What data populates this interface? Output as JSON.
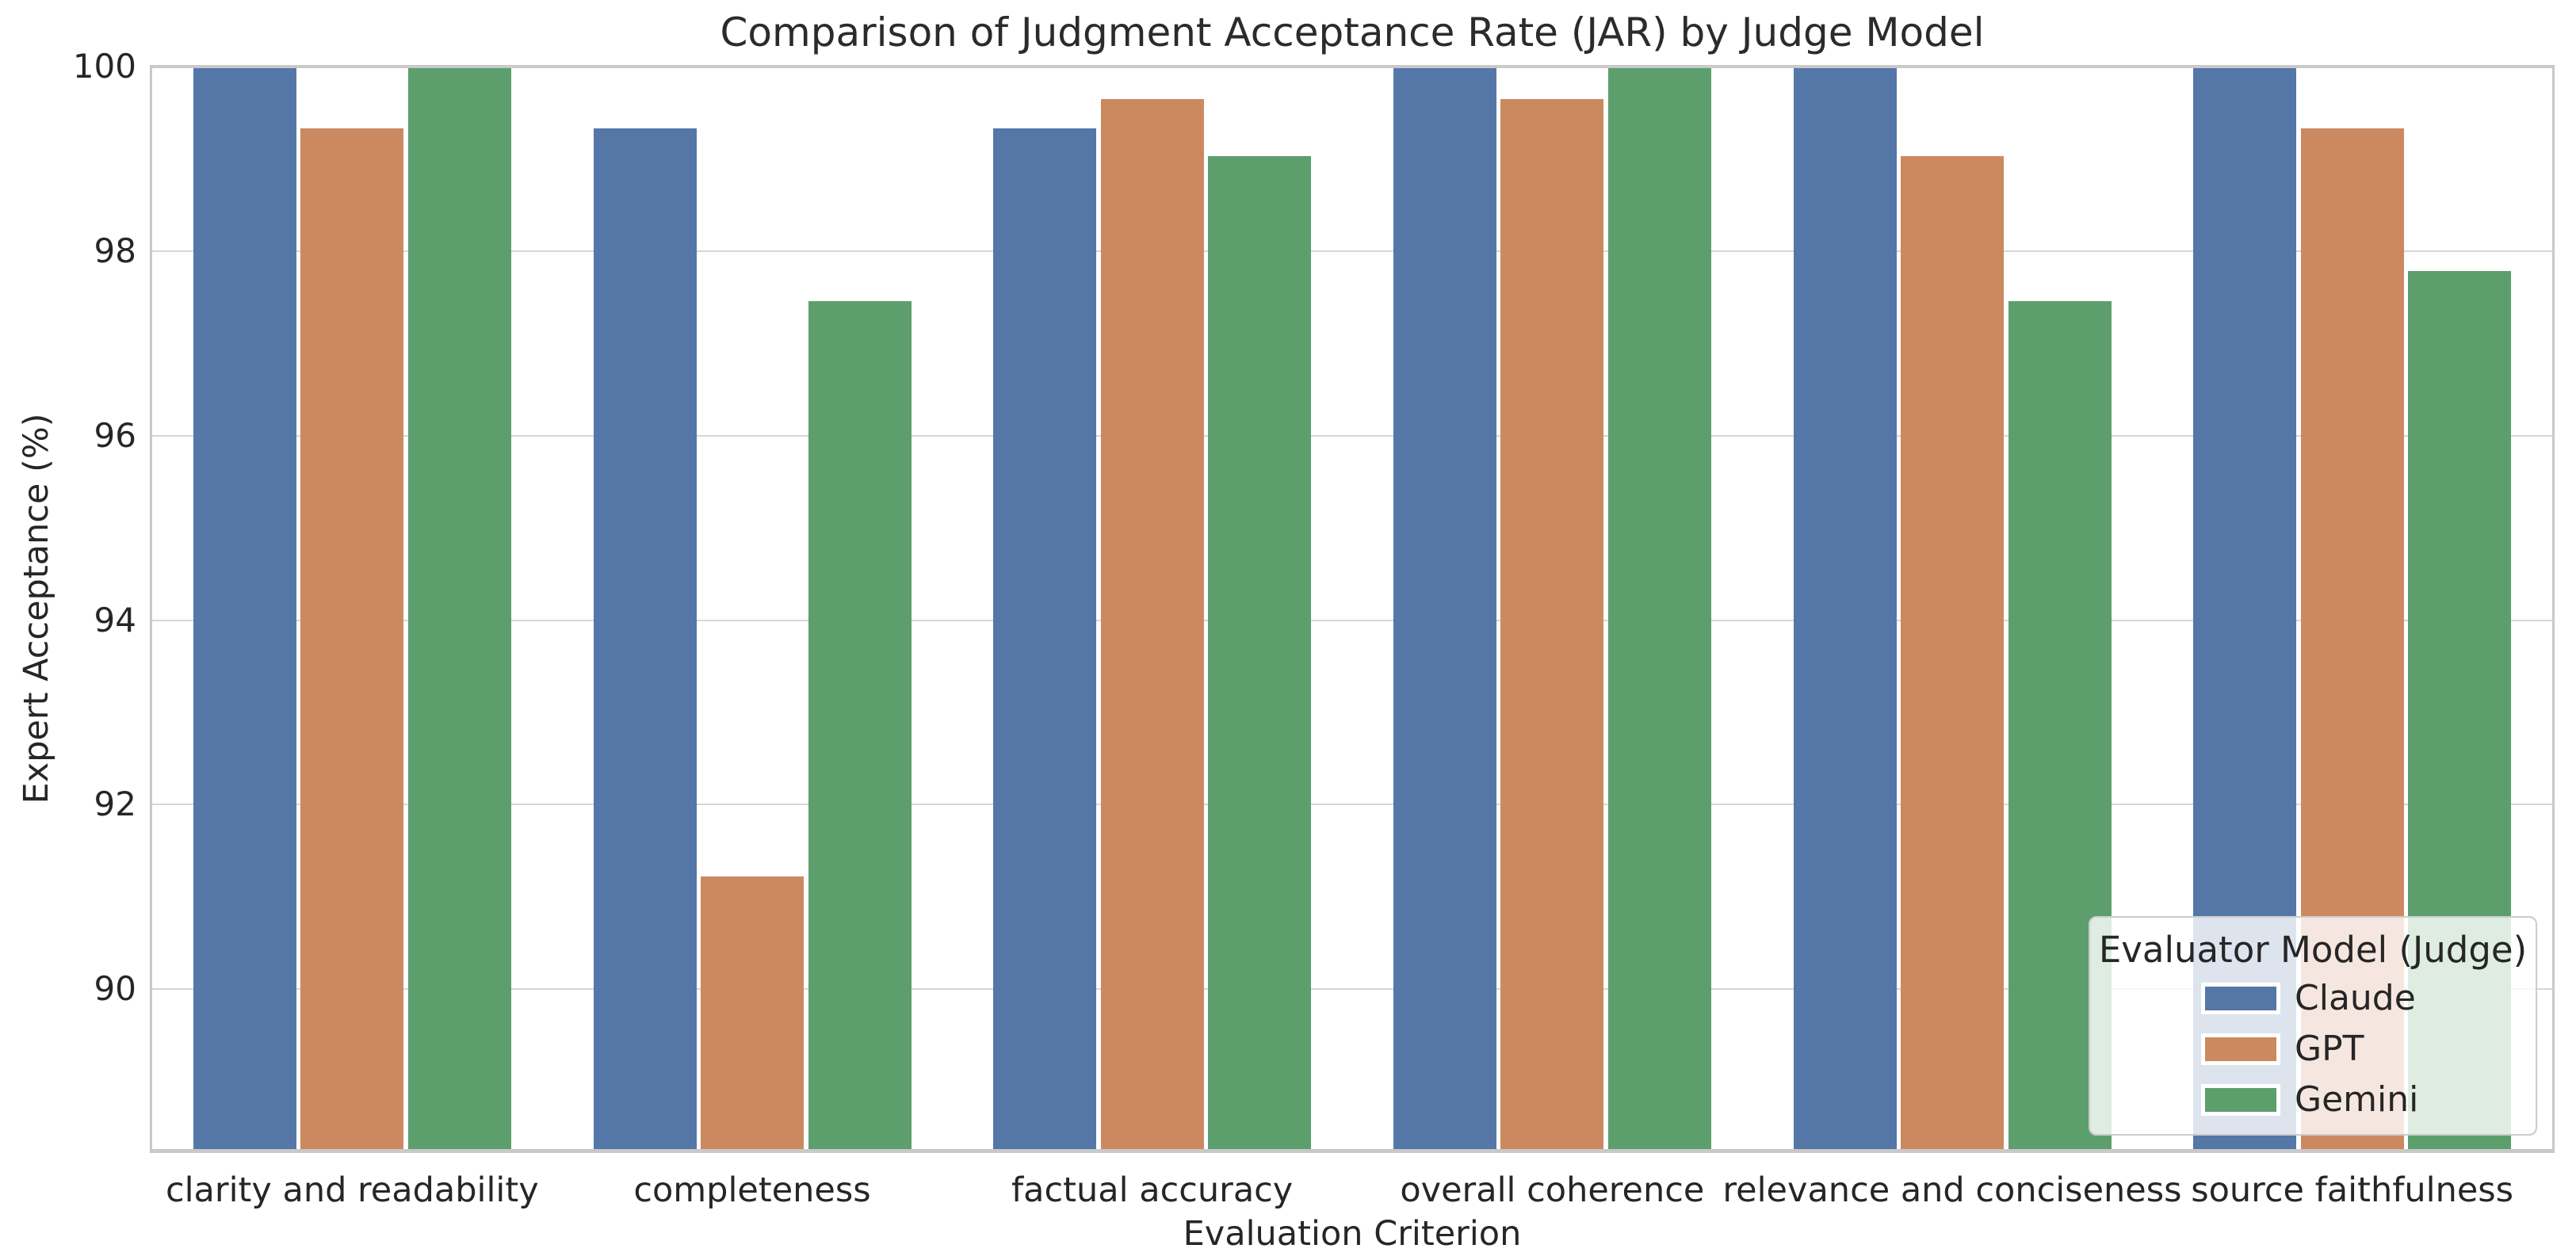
{
  "chart_data": {
    "type": "bar",
    "title": "Comparison of Judgment Acceptance Rate (JAR) by Judge Model",
    "xlabel": "Evaluation Criterion",
    "ylabel": "Expert Acceptance (%)",
    "categories": [
      "clarity and readability",
      "completeness",
      "factual accuracy",
      "overall coherence",
      "relevance and conciseness",
      "source faithfulness"
    ],
    "series": [
      {
        "name": "Claude",
        "color": "#5577A8",
        "values": [
          100.0,
          99.33,
          99.33,
          100.0,
          100.0,
          100.0
        ]
      },
      {
        "name": "GPT",
        "color": "#CC8960",
        "values": [
          99.33,
          91.22,
          99.65,
          99.65,
          99.03,
          99.33
        ]
      },
      {
        "name": "Gemini",
        "color": "#5D9E6D",
        "values": [
          100.0,
          97.46,
          99.03,
          100.0,
          97.46,
          97.78
        ]
      }
    ],
    "y_ticks": [
      100,
      98,
      96,
      94,
      92,
      90
    ],
    "ylim": [
      88.25,
      100
    ],
    "grid": true,
    "legend": {
      "title": "Evaluator Model (Judge)",
      "position": "lower right"
    },
    "colors": {
      "grid": "#d6d6d6",
      "spine": "#c9c9c9",
      "text": "#262626",
      "background": "#ffffff"
    }
  }
}
